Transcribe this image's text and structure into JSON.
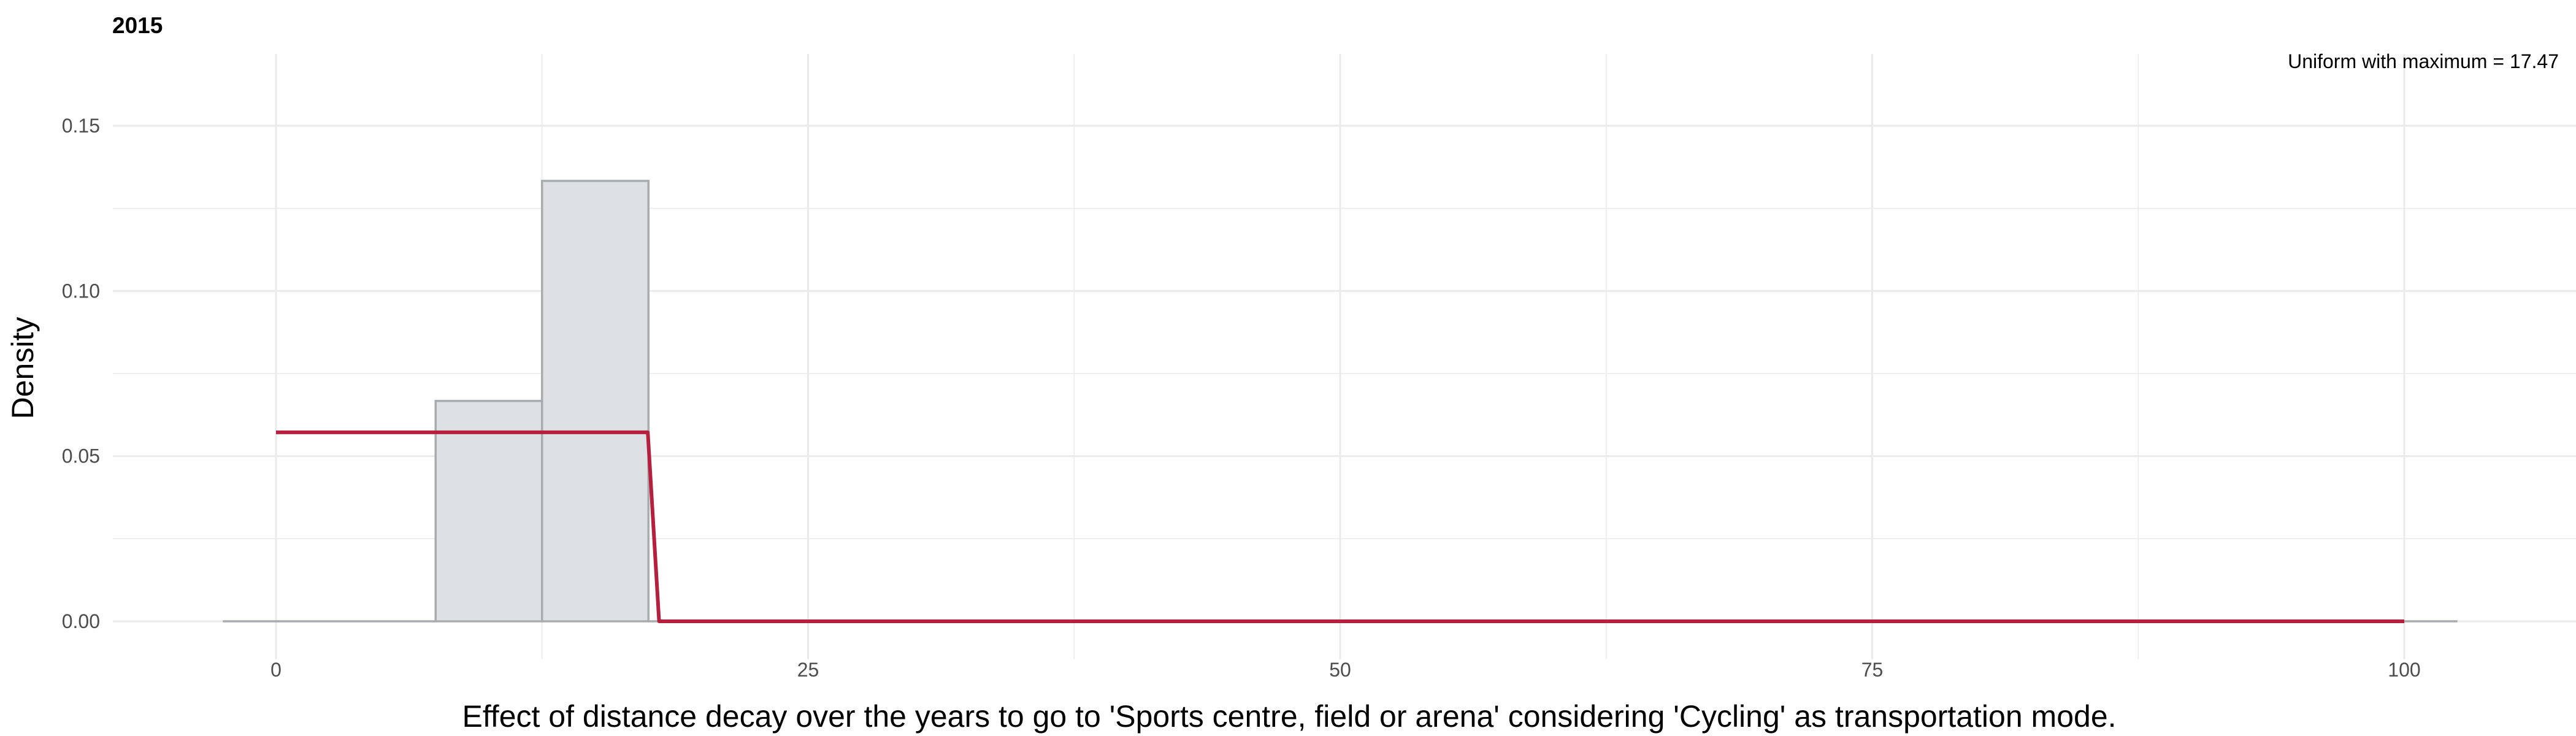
{
  "chart_data": {
    "type": "histogram",
    "title": "2015",
    "xlabel": "Effect of distance decay over the years to go to 'Sports centre, field or arena' considering 'Cycling' as transportation mode.",
    "ylabel": "Density",
    "annotation": "Uniform with maximum = 17.47",
    "xlim": [
      -5,
      106
    ],
    "ylim": [
      0,
      0.17
    ],
    "x_ticks": [
      0,
      25,
      50,
      75,
      100
    ],
    "x_tick_labels": [
      "0",
      "25",
      "50",
      "75",
      "100"
    ],
    "y_ticks": [
      0,
      0.05,
      0.1,
      0.15
    ],
    "y_tick_labels": [
      "0.00",
      "0.05",
      "0.10",
      "0.15"
    ],
    "grid": true,
    "bins": [
      {
        "x0": -2.5,
        "x1": 7.5,
        "density": 0.0
      },
      {
        "x0": 7.5,
        "x1": 12.5,
        "density": 0.0667
      },
      {
        "x0": 12.5,
        "x1": 17.5,
        "density": 0.1333
      },
      {
        "x0": 17.5,
        "x1": 102.5,
        "density": 0.0
      }
    ],
    "density_line": {
      "name": "Uniform with maximum = 17.47",
      "x": [
        0,
        17.47,
        18.0,
        100
      ],
      "y": [
        0.0572,
        0.0572,
        0.0,
        0.0
      ]
    },
    "colors": {
      "bar_fill": "#dde1e4",
      "bar_stroke": "#a9acae",
      "line": "#b5203e",
      "grid": "#ebebeb"
    }
  }
}
